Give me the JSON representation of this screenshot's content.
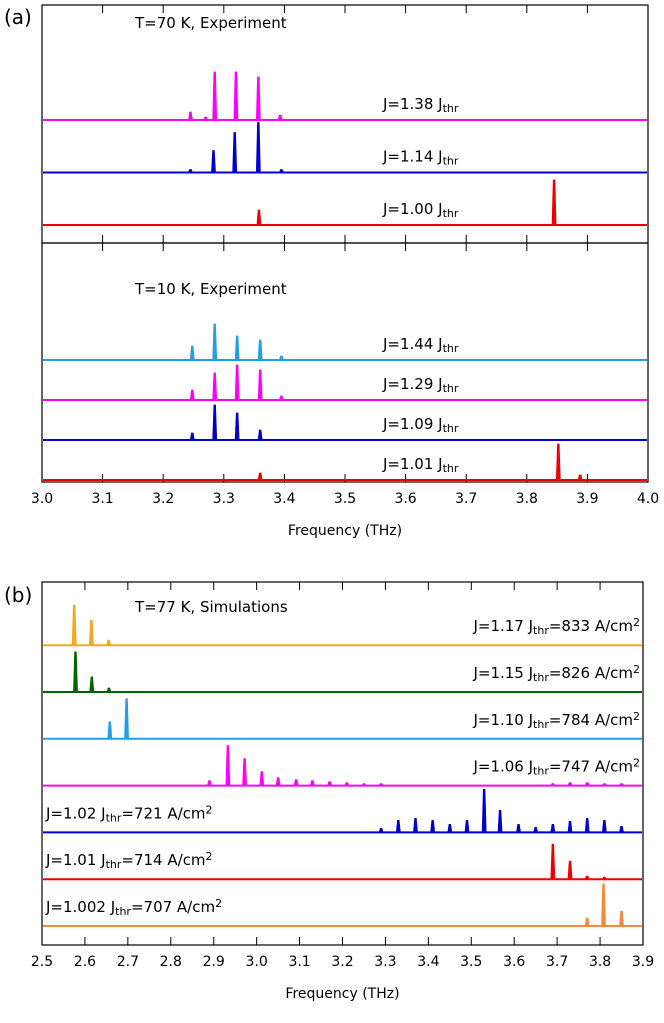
{
  "chart_data": [
    {
      "type": "spectra",
      "panel": "(a)",
      "title": "T=70 K, Experiment",
      "xlim": [
        3,
        4
      ],
      "xticks": [
        3,
        3.1,
        3.2,
        3.3,
        3.4,
        3.5,
        3.6,
        3.7,
        3.8,
        3.9,
        4
      ],
      "tick_labels": false,
      "series": [
        {
          "label": [
            {
              "text": "J=1.38 J"
            },
            {
              "text": "thr",
              "sub": true
            }
          ],
          "color": "#ff00ff",
          "x": [
            3.245,
            3.27,
            3.285,
            3.32,
            3.357,
            3.393
          ],
          "values": [
            8,
            3,
            48,
            48,
            43,
            5
          ]
        },
        {
          "label": [
            {
              "text": "J=1.14 J"
            },
            {
              "text": "thr",
              "sub": true
            }
          ],
          "color": "#0000cc",
          "x": [
            3.245,
            3.283,
            3.318,
            3.357,
            3.395
          ],
          "values": [
            3,
            22,
            40,
            50,
            3
          ]
        },
        {
          "label": [
            {
              "text": "J=1.00 J"
            },
            {
              "text": "thr",
              "sub": true
            }
          ],
          "color": "#ee0000",
          "x": [
            3.358,
            3.845
          ],
          "values": [
            15,
            45
          ]
        }
      ]
    },
    {
      "type": "spectra",
      "title": "T=10 K, Experiment",
      "xlabel": "Frequency (THz)",
      "xlim": [
        3,
        4
      ],
      "xticks": [
        {
          "value": 3,
          "label": "3.0"
        },
        3.1,
        3.2,
        3.3,
        3.4,
        3.5,
        3.6,
        3.7,
        3.8,
        3.9,
        {
          "value": 4,
          "label": "4.0"
        }
      ],
      "tick_labels": true,
      "series": [
        {
          "label": [
            {
              "text": "J=1.44 J"
            },
            {
              "text": "thr",
              "sub": true
            }
          ],
          "color": "#22a0e6",
          "x": [
            3.248,
            3.285,
            3.322,
            3.36,
            3.395
          ],
          "values": [
            14,
            36,
            24,
            20,
            4
          ]
        },
        {
          "label": [
            {
              "text": "J=1.29 J"
            },
            {
              "text": "thr",
              "sub": true
            }
          ],
          "color": "#ff00ff",
          "x": [
            3.248,
            3.285,
            3.322,
            3.36,
            3.395
          ],
          "values": [
            10,
            27,
            35,
            30,
            4
          ]
        },
        {
          "label": [
            {
              "text": "J=1.09 J"
            },
            {
              "text": "thr",
              "sub": true
            }
          ],
          "color": "#0000cc",
          "x": [
            3.248,
            3.285,
            3.322,
            3.36
          ],
          "values": [
            7,
            35,
            27,
            10
          ]
        },
        {
          "label": [
            {
              "text": "J=1.01 J"
            },
            {
              "text": "thr",
              "sub": true
            }
          ],
          "color": "#ee0000",
          "x": [
            3.36,
            3.852,
            3.888
          ],
          "values": [
            7,
            36,
            5
          ]
        }
      ]
    },
    {
      "type": "spectra",
      "panel": "(b)",
      "title": "T=77 K, Simulations",
      "xlabel": "Frequency (THz)",
      "xlim": [
        2.5,
        3.9
      ],
      "xticks": [
        2.5,
        2.6,
        2.7,
        2.8,
        2.9,
        {
          "value": 3,
          "label": "3.0"
        },
        3.1,
        3.2,
        3.3,
        3.4,
        3.5,
        3.6,
        3.7,
        3.8,
        3.9
      ],
      "tick_labels": true,
      "series": [
        {
          "label": [
            {
              "text": "J=1.17 J"
            },
            {
              "text": "thr",
              "sub": true
            },
            {
              "text": "=833 A/cm"
            },
            {
              "text": "2",
              "sup": true
            }
          ],
          "color": "#f5a623",
          "x": [
            2.575,
            2.615,
            2.655
          ],
          "values": [
            40,
            25,
            5
          ]
        },
        {
          "label": [
            {
              "text": "J=1.15 J"
            },
            {
              "text": "thr",
              "sub": true
            },
            {
              "text": "=826 A/cm"
            },
            {
              "text": "2",
              "sup": true
            }
          ],
          "color": "#006400",
          "x": [
            2.578,
            2.616,
            2.656
          ],
          "values": [
            40,
            15,
            4
          ]
        },
        {
          "label": [
            {
              "text": "J=1.10 J"
            },
            {
              "text": "thr",
              "sub": true
            },
            {
              "text": "=784 A/cm"
            },
            {
              "text": "2",
              "sup": true
            }
          ],
          "color": "#22a0e6",
          "x": [
            2.658,
            2.697
          ],
          "values": [
            17,
            40
          ]
        },
        {
          "label": [
            {
              "text": "J=1.06 J"
            },
            {
              "text": "thr",
              "sub": true
            },
            {
              "text": "=747 A/cm"
            },
            {
              "text": "2",
              "sup": true
            }
          ],
          "color": "#ff00ff",
          "x": [
            2.89,
            2.933,
            2.972,
            3.012,
            3.05,
            3.092,
            3.13,
            3.17,
            3.21,
            3.25,
            3.29,
            3.69,
            3.73,
            3.77,
            3.81,
            3.85
          ],
          "values": [
            5,
            40,
            27,
            14,
            8,
            6,
            5,
            4,
            3,
            2,
            2,
            2,
            3,
            3,
            2,
            2
          ]
        },
        {
          "label": [
            {
              "text": "J=1.02 J"
            },
            {
              "text": "thr",
              "sub": true
            },
            {
              "text": "=721 A/cm"
            },
            {
              "text": "2",
              "sup": true
            }
          ],
          "color": "#0000cc",
          "x": [
            3.29,
            3.33,
            3.37,
            3.41,
            3.45,
            3.49,
            3.53,
            3.567,
            3.61,
            3.65,
            3.69,
            3.73,
            3.77,
            3.81,
            3.85
          ],
          "values": [
            4,
            12,
            14,
            12,
            8,
            12,
            43,
            22,
            8,
            5,
            8,
            11,
            14,
            12,
            6
          ]
        },
        {
          "label": [
            {
              "text": "J=1.01 J"
            },
            {
              "text": "thr",
              "sub": true
            },
            {
              "text": "=714 A/cm"
            },
            {
              "text": "2",
              "sup": true
            }
          ],
          "color": "#ee0000",
          "x": [
            3.69,
            3.73,
            3.77,
            3.81
          ],
          "values": [
            35,
            18,
            3,
            2
          ]
        },
        {
          "label": [
            {
              "text": "J=1.002 J"
            },
            {
              "text": "thr",
              "sub": true
            },
            {
              "text": "=707 A/cm"
            },
            {
              "text": "2",
              "sup": true
            }
          ],
          "color": "#f58a3c",
          "x": [
            3.77,
            3.808,
            3.85
          ],
          "values": [
            8,
            42,
            15
          ]
        }
      ]
    }
  ]
}
